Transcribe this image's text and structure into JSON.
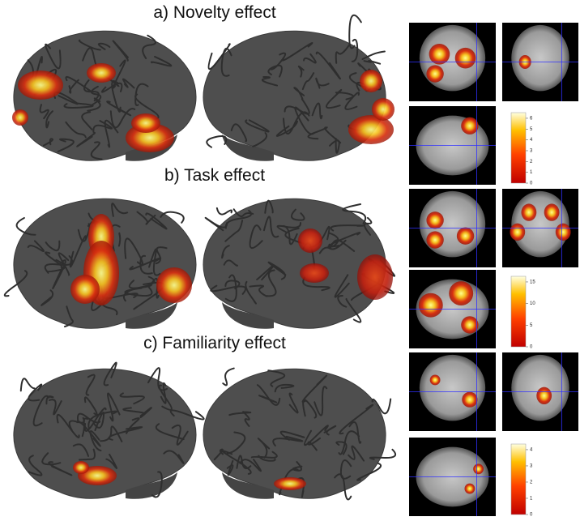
{
  "panels": [
    {
      "title": "a) Novelty effect",
      "colorbar_ticks": [
        0,
        1,
        2,
        3,
        4,
        5,
        6
      ]
    },
    {
      "title": "b) Task effect",
      "colorbar_ticks": [
        0,
        5,
        10,
        15
      ]
    },
    {
      "title": "c) Familiarity effect",
      "colorbar_ticks": [
        0,
        1,
        2,
        3,
        4
      ]
    }
  ]
}
